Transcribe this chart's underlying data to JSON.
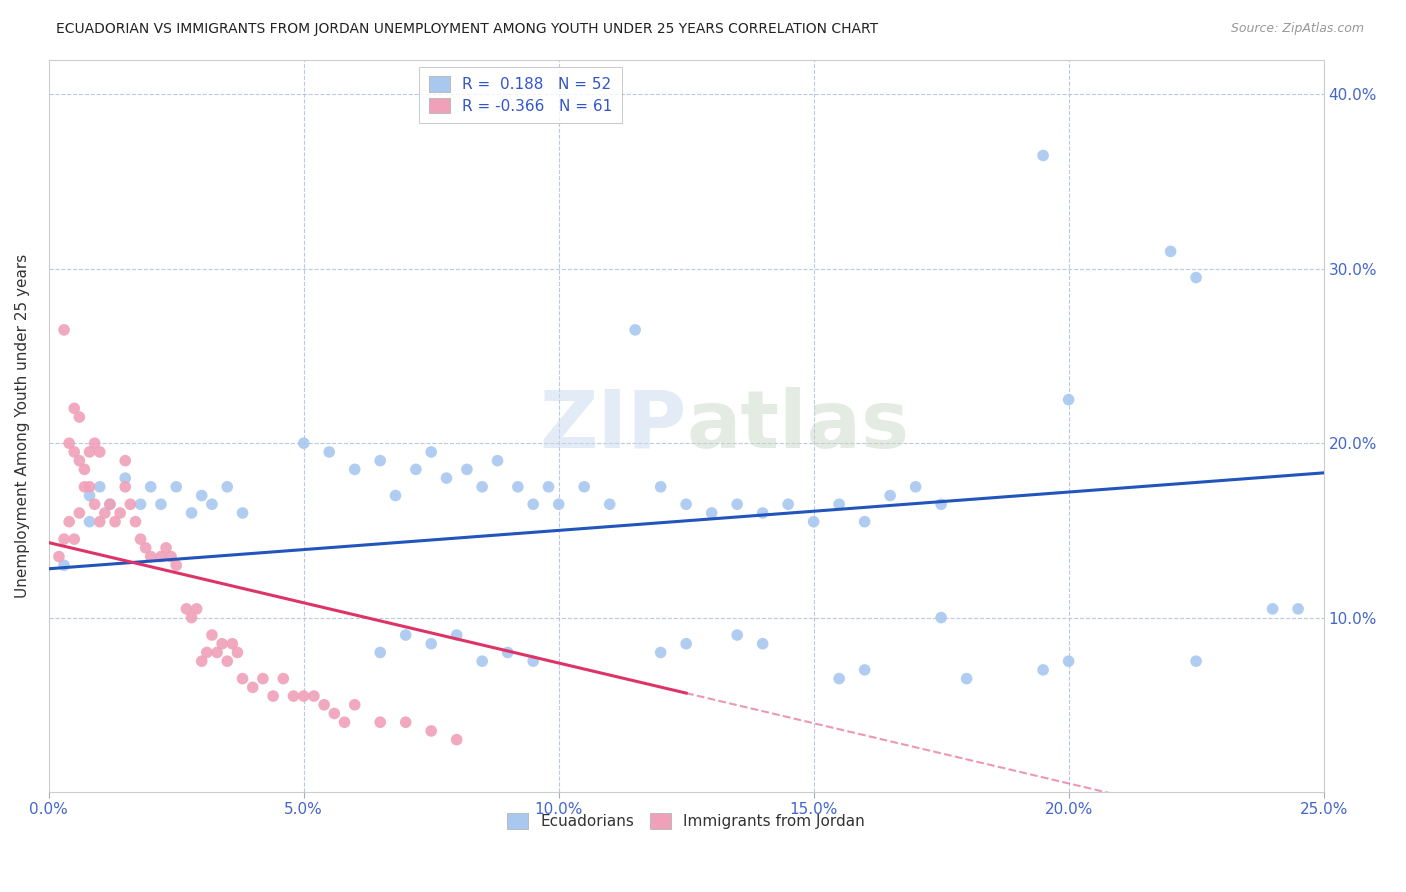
{
  "title": "ECUADORIAN VS IMMIGRANTS FROM JORDAN UNEMPLOYMENT AMONG YOUTH UNDER 25 YEARS CORRELATION CHART",
  "source": "Source: ZipAtlas.com",
  "ylabel": "Unemployment Among Youth under 25 years",
  "xlim": [
    0,
    0.25
  ],
  "ylim": [
    0,
    0.42
  ],
  "xticks": [
    0.0,
    0.05,
    0.1,
    0.15,
    0.2,
    0.25
  ],
  "yticks": [
    0.1,
    0.2,
    0.3,
    0.4
  ],
  "background_color": "#ffffff",
  "watermark": "ZIPatlas",
  "legend_R_blue": "0.188",
  "legend_N_blue": "52",
  "legend_R_pink": "-0.366",
  "legend_N_pink": "61",
  "blue_color": "#a8c8f0",
  "pink_color": "#f0a0b8",
  "blue_line_color": "#2255bb",
  "pink_line_color": "#dd3366",
  "blue_line_x0": 0.0,
  "blue_line_y0": 0.128,
  "blue_line_x1": 0.25,
  "blue_line_y1": 0.183,
  "pink_line_x0": 0.0,
  "pink_line_y0": 0.143,
  "pink_line_x1_solid": 0.125,
  "pink_line_x1_dash": 0.21,
  "scatter_blue": [
    [
      0.003,
      0.13
    ],
    [
      0.008,
      0.155
    ],
    [
      0.008,
      0.17
    ],
    [
      0.01,
      0.175
    ],
    [
      0.012,
      0.165
    ],
    [
      0.015,
      0.18
    ],
    [
      0.018,
      0.165
    ],
    [
      0.02,
      0.175
    ],
    [
      0.022,
      0.165
    ],
    [
      0.025,
      0.175
    ],
    [
      0.028,
      0.16
    ],
    [
      0.03,
      0.17
    ],
    [
      0.032,
      0.165
    ],
    [
      0.035,
      0.175
    ],
    [
      0.038,
      0.16
    ],
    [
      0.05,
      0.2
    ],
    [
      0.055,
      0.195
    ],
    [
      0.06,
      0.185
    ],
    [
      0.065,
      0.19
    ],
    [
      0.068,
      0.17
    ],
    [
      0.072,
      0.185
    ],
    [
      0.075,
      0.195
    ],
    [
      0.078,
      0.18
    ],
    [
      0.082,
      0.185
    ],
    [
      0.085,
      0.175
    ],
    [
      0.088,
      0.19
    ],
    [
      0.092,
      0.175
    ],
    [
      0.095,
      0.165
    ],
    [
      0.098,
      0.175
    ],
    [
      0.1,
      0.165
    ],
    [
      0.105,
      0.175
    ],
    [
      0.11,
      0.165
    ],
    [
      0.115,
      0.265
    ],
    [
      0.12,
      0.175
    ],
    [
      0.125,
      0.165
    ],
    [
      0.13,
      0.16
    ],
    [
      0.135,
      0.165
    ],
    [
      0.14,
      0.16
    ],
    [
      0.145,
      0.165
    ],
    [
      0.15,
      0.155
    ],
    [
      0.155,
      0.165
    ],
    [
      0.16,
      0.155
    ],
    [
      0.165,
      0.17
    ],
    [
      0.17,
      0.175
    ],
    [
      0.175,
      0.165
    ],
    [
      0.195,
      0.365
    ],
    [
      0.22,
      0.31
    ],
    [
      0.225,
      0.295
    ],
    [
      0.24,
      0.105
    ],
    [
      0.245,
      0.105
    ],
    [
      0.2,
      0.225
    ],
    [
      0.175,
      0.1
    ]
  ],
  "scatter_blue_low": [
    [
      0.065,
      0.08
    ],
    [
      0.07,
      0.09
    ],
    [
      0.075,
      0.085
    ],
    [
      0.08,
      0.09
    ],
    [
      0.085,
      0.075
    ],
    [
      0.09,
      0.08
    ],
    [
      0.095,
      0.075
    ],
    [
      0.12,
      0.08
    ],
    [
      0.125,
      0.085
    ],
    [
      0.135,
      0.09
    ],
    [
      0.14,
      0.085
    ],
    [
      0.155,
      0.065
    ],
    [
      0.16,
      0.07
    ],
    [
      0.18,
      0.065
    ],
    [
      0.195,
      0.07
    ],
    [
      0.2,
      0.075
    ],
    [
      0.225,
      0.075
    ]
  ],
  "scatter_pink": [
    [
      0.002,
      0.135
    ],
    [
      0.003,
      0.145
    ],
    [
      0.004,
      0.155
    ],
    [
      0.005,
      0.145
    ],
    [
      0.006,
      0.16
    ],
    [
      0.007,
      0.175
    ],
    [
      0.008,
      0.175
    ],
    [
      0.009,
      0.165
    ],
    [
      0.01,
      0.155
    ],
    [
      0.011,
      0.16
    ],
    [
      0.012,
      0.165
    ],
    [
      0.013,
      0.155
    ],
    [
      0.014,
      0.16
    ],
    [
      0.015,
      0.175
    ],
    [
      0.016,
      0.165
    ],
    [
      0.017,
      0.155
    ],
    [
      0.018,
      0.145
    ],
    [
      0.019,
      0.14
    ],
    [
      0.02,
      0.135
    ],
    [
      0.004,
      0.2
    ],
    [
      0.005,
      0.195
    ],
    [
      0.006,
      0.19
    ],
    [
      0.007,
      0.185
    ],
    [
      0.008,
      0.195
    ],
    [
      0.009,
      0.2
    ],
    [
      0.01,
      0.195
    ],
    [
      0.003,
      0.265
    ],
    [
      0.005,
      0.22
    ],
    [
      0.006,
      0.215
    ],
    [
      0.015,
      0.19
    ],
    [
      0.022,
      0.135
    ],
    [
      0.023,
      0.14
    ],
    [
      0.024,
      0.135
    ],
    [
      0.025,
      0.13
    ],
    [
      0.027,
      0.105
    ],
    [
      0.028,
      0.1
    ],
    [
      0.029,
      0.105
    ],
    [
      0.03,
      0.075
    ],
    [
      0.031,
      0.08
    ],
    [
      0.032,
      0.09
    ],
    [
      0.033,
      0.08
    ],
    [
      0.034,
      0.085
    ],
    [
      0.035,
      0.075
    ],
    [
      0.036,
      0.085
    ],
    [
      0.037,
      0.08
    ],
    [
      0.038,
      0.065
    ],
    [
      0.04,
      0.06
    ],
    [
      0.042,
      0.065
    ],
    [
      0.044,
      0.055
    ],
    [
      0.046,
      0.065
    ],
    [
      0.048,
      0.055
    ],
    [
      0.05,
      0.055
    ],
    [
      0.052,
      0.055
    ],
    [
      0.054,
      0.05
    ],
    [
      0.056,
      0.045
    ],
    [
      0.058,
      0.04
    ],
    [
      0.06,
      0.05
    ],
    [
      0.065,
      0.04
    ],
    [
      0.07,
      0.04
    ],
    [
      0.075,
      0.035
    ],
    [
      0.08,
      0.03
    ]
  ]
}
